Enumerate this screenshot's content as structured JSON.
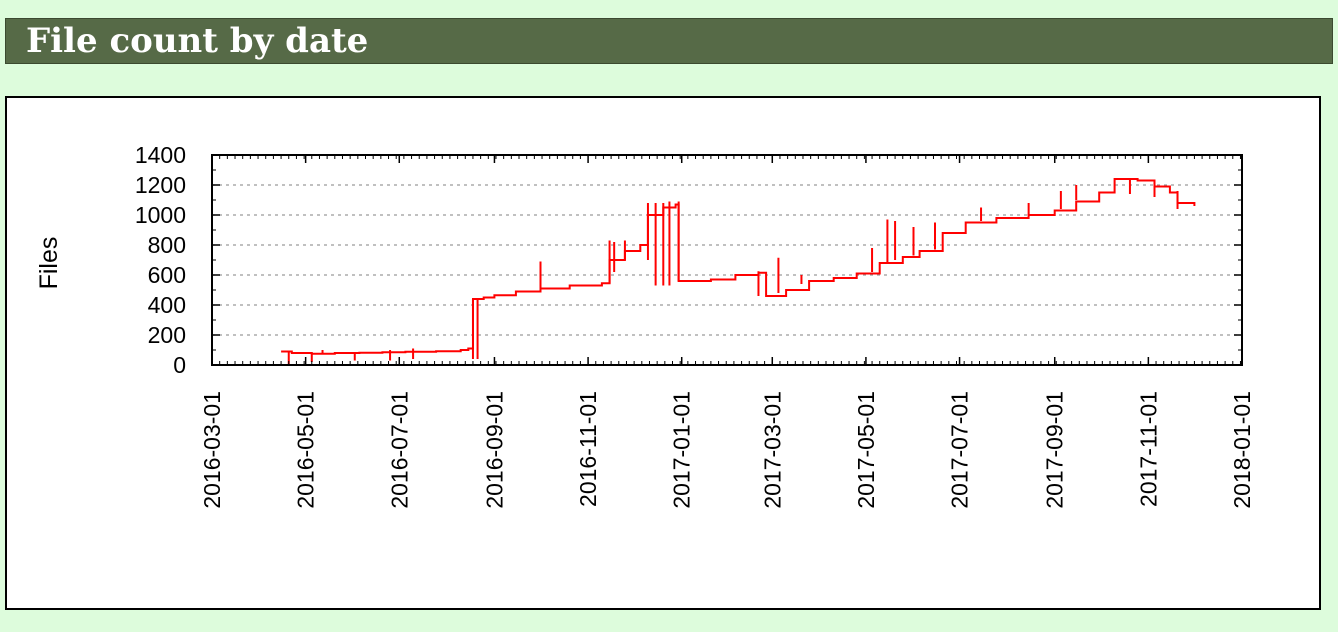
{
  "section": {
    "title": "File count by date"
  },
  "chart_data": {
    "type": "line",
    "title": "",
    "xlabel": "",
    "ylabel": "Files",
    "x_range": [
      "2016-03-01",
      "2018-01-01"
    ],
    "ylim": [
      0,
      1400
    ],
    "y_ticks": [
      0,
      200,
      400,
      600,
      800,
      1000,
      1200,
      1400
    ],
    "x_ticks": [
      "2016-03-01",
      "2016-05-01",
      "2016-07-01",
      "2016-09-01",
      "2016-11-01",
      "2017-01-01",
      "2017-03-01",
      "2017-05-01",
      "2017-07-01",
      "2017-09-01",
      "2017-11-01",
      "2018-01-01"
    ],
    "grid": "horizontal-dashed",
    "series": [
      {
        "color": "#ff0000",
        "points": [
          [
            "2016-04-15",
            90
          ],
          [
            "2016-04-22",
            80
          ],
          [
            "2016-05-05",
            75
          ],
          [
            "2016-05-20",
            80
          ],
          [
            "2016-06-05",
            82
          ],
          [
            "2016-06-20",
            85
          ],
          [
            "2016-07-05",
            88
          ],
          [
            "2016-07-25",
            92
          ],
          [
            "2016-08-10",
            100
          ],
          [
            "2016-08-15",
            110
          ],
          [
            "2016-08-18",
            440
          ],
          [
            "2016-08-25",
            450
          ],
          [
            "2016-09-01",
            465
          ],
          [
            "2016-09-15",
            490
          ],
          [
            "2016-10-01",
            510
          ],
          [
            "2016-10-20",
            530
          ],
          [
            "2016-11-10",
            545
          ],
          [
            "2016-11-15",
            700
          ],
          [
            "2016-11-25",
            760
          ],
          [
            "2016-12-05",
            800
          ],
          [
            "2016-12-10",
            1000
          ],
          [
            "2016-12-20",
            1050
          ],
          [
            "2016-12-28",
            1070
          ],
          [
            "2016-12-30",
            560
          ],
          [
            "2017-01-20",
            570
          ],
          [
            "2017-02-05",
            600
          ],
          [
            "2017-02-20",
            615
          ],
          [
            "2017-02-25",
            460
          ],
          [
            "2017-03-10",
            500
          ],
          [
            "2017-03-25",
            560
          ],
          [
            "2017-04-10",
            580
          ],
          [
            "2017-04-25",
            610
          ],
          [
            "2017-05-10",
            680
          ],
          [
            "2017-05-25",
            720
          ],
          [
            "2017-06-05",
            760
          ],
          [
            "2017-06-20",
            880
          ],
          [
            "2017-07-05",
            950
          ],
          [
            "2017-07-25",
            980
          ],
          [
            "2017-08-15",
            1000
          ],
          [
            "2017-09-01",
            1030
          ],
          [
            "2017-09-15",
            1090
          ],
          [
            "2017-09-30",
            1150
          ],
          [
            "2017-10-10",
            1240
          ],
          [
            "2017-10-25",
            1230
          ],
          [
            "2017-11-05",
            1190
          ],
          [
            "2017-11-15",
            1150
          ],
          [
            "2017-11-20",
            1080
          ],
          [
            "2017-12-01",
            1060
          ]
        ]
      }
    ],
    "spikes": [
      [
        "2016-04-20",
        0,
        90
      ],
      [
        "2016-05-05",
        20,
        75
      ],
      [
        "2016-05-12",
        75,
        100
      ],
      [
        "2016-06-02",
        30,
        82
      ],
      [
        "2016-06-25",
        30,
        100
      ],
      [
        "2016-07-10",
        40,
        110
      ],
      [
        "2016-08-18",
        40,
        440
      ],
      [
        "2016-08-21",
        40,
        440
      ],
      [
        "2016-10-01",
        510,
        690
      ],
      [
        "2016-11-15",
        545,
        830
      ],
      [
        "2016-11-18",
        620,
        820
      ],
      [
        "2016-11-25",
        700,
        830
      ],
      [
        "2016-12-10",
        700,
        1080
      ],
      [
        "2016-12-15",
        530,
        1080
      ],
      [
        "2016-12-20",
        530,
        1080
      ],
      [
        "2016-12-24",
        530,
        1090
      ],
      [
        "2016-12-30",
        560,
        1090
      ],
      [
        "2017-02-20",
        460,
        625
      ],
      [
        "2017-03-05",
        480,
        715
      ],
      [
        "2017-03-20",
        540,
        600
      ],
      [
        "2017-05-05",
        620,
        780
      ],
      [
        "2017-05-15",
        680,
        970
      ],
      [
        "2017-05-20",
        700,
        960
      ],
      [
        "2017-06-01",
        730,
        920
      ],
      [
        "2017-06-15",
        770,
        950
      ],
      [
        "2017-07-15",
        960,
        1050
      ],
      [
        "2017-08-15",
        1000,
        1080
      ],
      [
        "2017-09-05",
        1040,
        1160
      ],
      [
        "2017-09-15",
        1100,
        1200
      ],
      [
        "2017-10-20",
        1140,
        1240
      ],
      [
        "2017-11-05",
        1120,
        1190
      ],
      [
        "2017-11-20",
        1040,
        1160
      ]
    ]
  }
}
